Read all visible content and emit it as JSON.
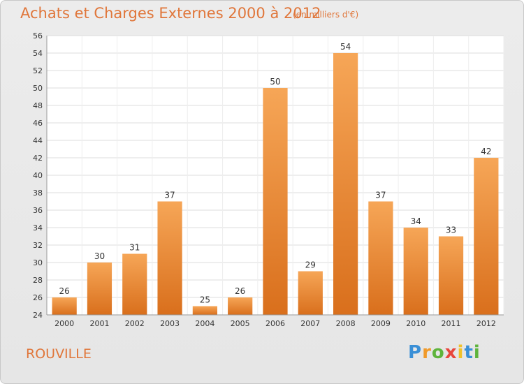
{
  "chart_data": {
    "type": "bar",
    "title": "Achats et Charges Externes 2000 à 2012",
    "subtitle": "(en milliers d'€)",
    "categories": [
      "2000",
      "2001",
      "2002",
      "2003",
      "2004",
      "2005",
      "2006",
      "2007",
      "2008",
      "2009",
      "2010",
      "2011",
      "2012"
    ],
    "values": [
      26,
      30,
      31,
      37,
      25,
      26,
      50,
      29,
      54,
      37,
      34,
      33,
      42
    ],
    "ylim": [
      24,
      56
    ],
    "yticks": [
      24,
      26,
      28,
      30,
      32,
      34,
      36,
      38,
      40,
      42,
      44,
      46,
      48,
      50,
      52,
      54,
      56
    ],
    "grid": true,
    "bar_color_top": "#f6a657",
    "bar_color_bottom": "#d96f1c"
  },
  "footer": {
    "city": "ROUVILLE",
    "logo": {
      "letters": [
        "P",
        "r",
        "o",
        "x",
        "i",
        "t",
        "i"
      ],
      "colors": [
        "#3a8fd6",
        "#f09a2a",
        "#5fb43c",
        "#e8463c",
        "#f0c12a",
        "#3a8fd6",
        "#5fb43c"
      ]
    }
  }
}
